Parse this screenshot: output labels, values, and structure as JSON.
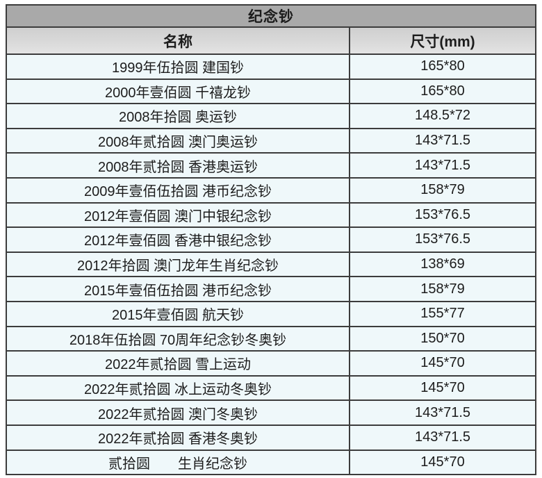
{
  "table": {
    "title": "纪念钞",
    "columns": [
      {
        "label": "名称"
      },
      {
        "label": "尺寸(mm)"
      }
    ],
    "rows": [
      {
        "name": "1999年伍拾圆 建国钞",
        "size": "165*80"
      },
      {
        "name": "2000年壹佰圆 千禧龙钞",
        "size": "165*80"
      },
      {
        "name": "2008年拾圆 奥运钞",
        "size": "148.5*72"
      },
      {
        "name": "2008年贰拾圆 澳门奥运钞",
        "size": "143*71.5"
      },
      {
        "name": "2008年贰拾圆 香港奥运钞",
        "size": "143*71.5"
      },
      {
        "name": "2009年壹佰伍拾圆 港币纪念钞",
        "size": "158*79"
      },
      {
        "name": "2012年壹佰圆 澳门中银纪念钞",
        "size": "153*76.5"
      },
      {
        "name": "2012年壹佰圆 香港中银纪念钞",
        "size": "153*76.5"
      },
      {
        "name": "2012年拾圆 澳门龙年生肖纪念钞",
        "size": "138*69"
      },
      {
        "name": "2015年壹佰伍拾圆 港币纪念钞",
        "size": "158*79"
      },
      {
        "name": "2015年壹佰圆 航天钞",
        "size": "155*77"
      },
      {
        "name": "2018年伍拾圆 70周年纪念钞冬奥钞",
        "size": "150*70"
      },
      {
        "name": "2022年贰拾圆 雪上运动",
        "size": "145*70"
      },
      {
        "name": "2022年贰拾圆 冰上运动冬奥钞",
        "size": "145*70"
      },
      {
        "name": "2022年贰拾圆 澳门冬奥钞",
        "size": "143*71.5"
      },
      {
        "name": "2022年贰拾圆 香港冬奥钞",
        "size": "143*71.5"
      },
      {
        "name": "贰拾圆　　生肖纪念钞",
        "size": "145*70"
      }
    ],
    "colors": {
      "title_bg": "#a9a9a9",
      "header_bg": "#d9d9d9",
      "row_bg": "#eff8fa",
      "border": "#3c3c3c",
      "text": "#1c1c1c"
    }
  }
}
